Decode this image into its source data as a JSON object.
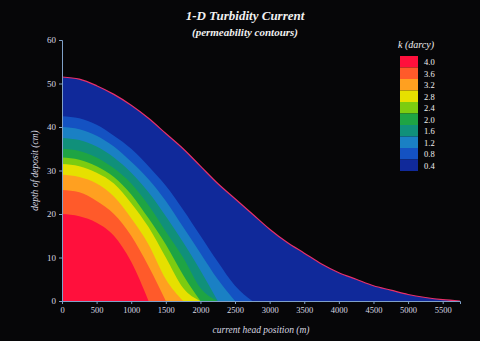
{
  "chart_data": {
    "type": "area",
    "title": "1-D Turbidity Current",
    "subtitle": "(permeability contours)",
    "x_label": "current head position (m)",
    "y_label": "depth of deposit (cm)",
    "legend_title": "k (darcy)",
    "legend": "top-right",
    "x": [
      0,
      250,
      500,
      750,
      1000,
      1250,
      1500,
      1750,
      2000,
      2250,
      2500,
      2750,
      3000,
      3250,
      3500,
      3750,
      4000,
      4250,
      4500,
      4750,
      5000,
      5250,
      5500,
      5750
    ],
    "xlim": [
      0,
      5750
    ],
    "xticks": [
      0,
      500,
      1000,
      1500,
      2000,
      2500,
      3000,
      3500,
      4000,
      4500,
      5000,
      5500
    ],
    "ylim": [
      0,
      60
    ],
    "yticks": [
      0,
      10,
      20,
      30,
      40,
      50,
      60
    ],
    "series": [
      {
        "name": "4.0",
        "color": "#ff103c",
        "values": [
          20,
          19.5,
          18,
          15,
          9,
          0,
          null,
          null,
          null,
          null,
          null,
          null,
          null,
          null,
          null,
          null,
          null,
          null,
          null,
          null,
          null,
          null,
          null,
          null
        ]
      },
      {
        "name": "3.6",
        "color": "#ff5a2a",
        "values": [
          25.5,
          25,
          23,
          20,
          15,
          8,
          0,
          null,
          null,
          null,
          null,
          null,
          null,
          null,
          null,
          null,
          null,
          null,
          null,
          null,
          null,
          null,
          null,
          null
        ]
      },
      {
        "name": "3.2",
        "color": "#ffa020",
        "values": [
          29,
          28.5,
          27,
          24,
          19,
          13,
          5,
          0,
          null,
          null,
          null,
          null,
          null,
          null,
          null,
          null,
          null,
          null,
          null,
          null,
          null,
          null,
          null,
          null
        ]
      },
      {
        "name": "2.8",
        "color": "#e6e000",
        "values": [
          31.5,
          31,
          29.5,
          27,
          22.5,
          17,
          10,
          3,
          0,
          null,
          null,
          null,
          null,
          null,
          null,
          null,
          null,
          null,
          null,
          null,
          null,
          null,
          null,
          null
        ]
      },
      {
        "name": "2.4",
        "color": "#7ccc10",
        "values": [
          33,
          32.5,
          31,
          28.5,
          24.5,
          19,
          13,
          6,
          0,
          null,
          null,
          null,
          null,
          null,
          null,
          null,
          null,
          null,
          null,
          null,
          null,
          null,
          null,
          null
        ]
      },
      {
        "name": "2.0",
        "color": "#1ea444",
        "values": [
          35,
          34.5,
          33,
          30.5,
          27,
          22,
          16,
          10,
          3,
          0,
          null,
          null,
          null,
          null,
          null,
          null,
          null,
          null,
          null,
          null,
          null,
          null,
          null,
          null
        ]
      },
      {
        "name": "1.6",
        "color": "#10907a",
        "values": [
          37.5,
          37,
          35.5,
          33,
          29.5,
          25,
          19.5,
          13.5,
          7,
          0,
          null,
          null,
          null,
          null,
          null,
          null,
          null,
          null,
          null,
          null,
          null,
          null,
          null,
          null
        ]
      },
      {
        "name": "1.2",
        "color": "#1a80c4",
        "values": [
          40,
          39.5,
          38,
          35.5,
          32,
          28,
          23,
          17,
          11,
          5,
          0,
          null,
          null,
          null,
          null,
          null,
          null,
          null,
          null,
          null,
          null,
          null,
          null,
          null
        ]
      },
      {
        "name": "0.8",
        "color": "#1452c2",
        "values": [
          42.5,
          42,
          40.5,
          38,
          35,
          31,
          26.5,
          21,
          15,
          9,
          3.5,
          0,
          null,
          null,
          null,
          null,
          null,
          null,
          null,
          null,
          null,
          null,
          null,
          null
        ]
      },
      {
        "name": "0.4",
        "color": "#10299a",
        "values": [
          51.5,
          51,
          49.5,
          47.5,
          45,
          42,
          38.5,
          35,
          31,
          27,
          23.5,
          20,
          16.5,
          13.5,
          11,
          8.5,
          6.5,
          5,
          3.5,
          2.5,
          1.5,
          0.8,
          0.3,
          0
        ]
      }
    ]
  }
}
